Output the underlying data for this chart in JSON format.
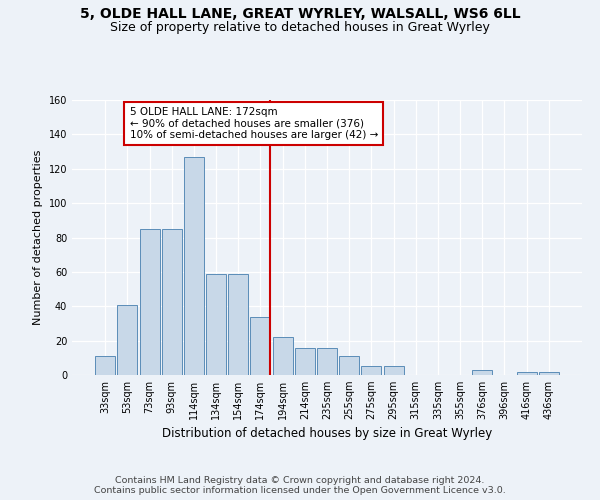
{
  "title1": "5, OLDE HALL LANE, GREAT WYRLEY, WALSALL, WS6 6LL",
  "title2": "Size of property relative to detached houses in Great Wyrley",
  "xlabel": "Distribution of detached houses by size in Great Wyrley",
  "ylabel": "Number of detached properties",
  "categories": [
    "33sqm",
    "53sqm",
    "73sqm",
    "93sqm",
    "114sqm",
    "134sqm",
    "154sqm",
    "174sqm",
    "194sqm",
    "214sqm",
    "235sqm",
    "255sqm",
    "275sqm",
    "295sqm",
    "315sqm",
    "335sqm",
    "355sqm",
    "376sqm",
    "396sqm",
    "416sqm",
    "436sqm"
  ],
  "values": [
    11,
    41,
    85,
    85,
    127,
    59,
    59,
    34,
    22,
    16,
    16,
    11,
    5,
    5,
    0,
    0,
    0,
    3,
    0,
    2,
    2
  ],
  "bar_color": "#c8d8e8",
  "bar_edge_color": "#5b8db8",
  "vline_color": "#cc0000",
  "vline_index": 7,
  "annotation_text": "5 OLDE HALL LANE: 172sqm\n← 90% of detached houses are smaller (376)\n10% of semi-detached houses are larger (42) →",
  "annotation_box_facecolor": "white",
  "annotation_box_edgecolor": "#cc0000",
  "ylim_max": 160,
  "yticks": [
    0,
    20,
    40,
    60,
    80,
    100,
    120,
    140,
    160
  ],
  "footer": "Contains HM Land Registry data © Crown copyright and database right 2024.\nContains public sector information licensed under the Open Government Licence v3.0.",
  "bg_color": "#edf2f8",
  "title1_fontsize": 10,
  "title2_fontsize": 9,
  "xlabel_fontsize": 8.5,
  "ylabel_fontsize": 8,
  "tick_fontsize": 7,
  "annotation_fontsize": 7.5,
  "footer_fontsize": 6.8
}
